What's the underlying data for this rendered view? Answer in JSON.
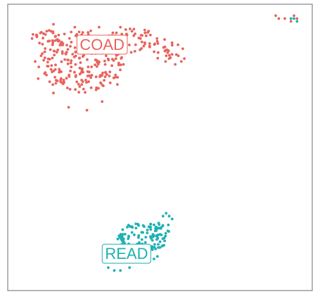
{
  "chart_data": {
    "type": "scatter",
    "title": "",
    "xlabel": "",
    "ylabel": "",
    "grid": false,
    "legend": "none",
    "xlim": [
      0,
      100
    ],
    "ylim": [
      0,
      100
    ],
    "series": [
      {
        "name": "COAD",
        "color": "#E8635C",
        "label_at": [
          31,
          86
        ],
        "blobs": [
          {
            "cx": 24,
            "cy": 80,
            "rx": 14,
            "ry": 11,
            "n": 230
          },
          {
            "cx": 41,
            "cy": 87,
            "rx": 9,
            "ry": 4.5,
            "n": 50
          },
          {
            "cx": 52,
            "cy": 84,
            "rx": 6,
            "ry": 4,
            "n": 26
          },
          {
            "cx": 12,
            "cy": 88,
            "rx": 5,
            "ry": 3,
            "n": 22
          }
        ],
        "points": [
          [
            8,
            88
          ],
          [
            9,
            80
          ],
          [
            10,
            74
          ],
          [
            15,
            69
          ],
          [
            20,
            64
          ],
          [
            26,
            63
          ],
          [
            31,
            66
          ],
          [
            36,
            72
          ],
          [
            38,
            79
          ],
          [
            57,
            80
          ],
          [
            56,
            82
          ],
          [
            55,
            79
          ],
          [
            53,
            81
          ],
          [
            58,
            81
          ],
          [
            49,
            88
          ],
          [
            45,
            91
          ],
          [
            37,
            92
          ],
          [
            30,
            92
          ],
          [
            22,
            92
          ],
          [
            15,
            93
          ],
          [
            88,
            96
          ],
          [
            89,
            95
          ],
          [
            91,
            95
          ],
          [
            93,
            94
          ],
          [
            94,
            96
          ],
          [
            95,
            95
          ]
        ]
      },
      {
        "name": "READ",
        "color": "#1FB0B3",
        "label_at": [
          39,
          13
        ],
        "blobs": [
          {
            "cx": 44,
            "cy": 17,
            "rx": 8,
            "ry": 7,
            "n": 110
          },
          {
            "cx": 50,
            "cy": 21,
            "rx": 4,
            "ry": 3,
            "n": 25
          }
        ],
        "points": [
          [
            52,
            27
          ],
          [
            53,
            26
          ],
          [
            51,
            26
          ],
          [
            54,
            25
          ],
          [
            33,
            8
          ],
          [
            35,
            7
          ],
          [
            37,
            7
          ],
          [
            40,
            8
          ],
          [
            94,
            95
          ],
          [
            95,
            94
          ],
          [
            93,
            95
          ]
        ]
      }
    ]
  }
}
